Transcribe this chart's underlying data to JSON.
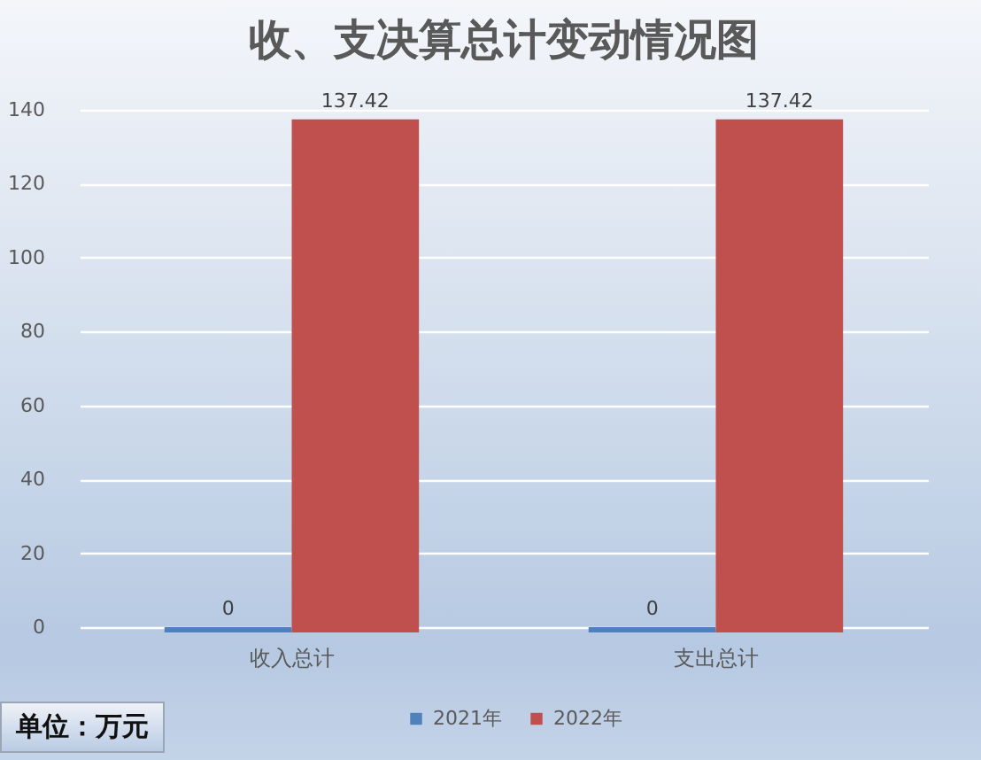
{
  "chart_data": {
    "type": "bar",
    "title": "收、支决算总计变动情况图",
    "categories": [
      "收入总计",
      "支出总计"
    ],
    "series": [
      {
        "name": "2021年",
        "color": "#4f81bd",
        "values": [
          0,
          0
        ]
      },
      {
        "name": "2022年",
        "color": "#c0504d",
        "values": [
          137.42,
          137.42
        ]
      }
    ],
    "ylim": [
      0,
      140
    ],
    "yticks": [
      0,
      20,
      40,
      60,
      80,
      100,
      120,
      140
    ],
    "grid": "y",
    "legend": "bottom",
    "data_labels": true,
    "annotations": [
      "单位：万元"
    ]
  }
}
